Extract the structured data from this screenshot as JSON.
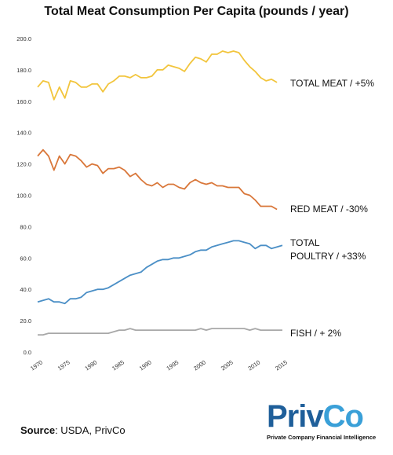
{
  "chart_data": {
    "type": "line",
    "title": "Total Meat Consumption Per Capita (pounds / year)",
    "xlabel": "",
    "ylabel": "",
    "xlim": [
      1970,
      2015
    ],
    "ylim": [
      0,
      200
    ],
    "yticks": [
      "0.0",
      "20.0",
      "40.0",
      "60.0",
      "80.0",
      "100.0",
      "120.0",
      "140.0",
      "160.0",
      "180.0",
      "200.0"
    ],
    "xticks": [
      "1970",
      "1975",
      "1980",
      "1985",
      "1990",
      "1995",
      "2000",
      "2005",
      "2010",
      "2015"
    ],
    "grid": false,
    "x": [
      1970,
      1971,
      1972,
      1973,
      1974,
      1975,
      1976,
      1977,
      1978,
      1979,
      1980,
      1981,
      1982,
      1983,
      1984,
      1985,
      1986,
      1987,
      1988,
      1989,
      1990,
      1991,
      1992,
      1993,
      1994,
      1995,
      1996,
      1997,
      1998,
      1999,
      2000,
      2001,
      2002,
      2003,
      2004,
      2005,
      2006,
      2007,
      2008,
      2009,
      2010,
      2011,
      2012,
      2013,
      2014,
      2015
    ],
    "series": [
      {
        "name": "TOTAL MEAT / +5%",
        "color": "#f2c53d",
        "values": [
          169,
          173,
          172,
          161,
          169,
          162,
          173,
          172,
          169,
          169,
          171,
          171,
          166,
          171,
          173,
          176,
          176,
          175,
          177,
          175,
          175,
          176,
          180,
          180,
          183,
          182,
          181,
          179,
          184,
          188,
          187,
          185,
          190,
          190,
          192,
          191,
          192,
          191,
          186,
          182,
          179,
          175,
          173,
          174,
          172,
          null
        ]
      },
      {
        "name": "RED MEAT / -30%",
        "color": "#d9773a",
        "values": [
          125,
          129,
          125,
          116,
          125,
          120,
          126,
          125,
          122,
          118,
          120,
          119,
          114,
          117,
          117,
          118,
          116,
          112,
          114,
          110,
          107,
          106,
          108,
          105,
          107,
          107,
          105,
          104,
          108,
          110,
          108,
          107,
          108,
          106,
          106,
          105,
          105,
          105,
          101,
          100,
          97,
          93,
          93,
          93,
          91,
          null
        ]
      },
      {
        "name": "TOTAL POULTRY / +33%",
        "color": "#4b8fc6",
        "values": [
          32,
          33,
          34,
          32,
          32,
          31,
          34,
          34,
          35,
          38,
          39,
          40,
          40,
          41,
          43,
          45,
          47,
          49,
          50,
          51,
          54,
          56,
          58,
          59,
          59,
          60,
          60,
          61,
          62,
          64,
          65,
          65,
          67,
          68,
          69,
          70,
          71,
          71,
          70,
          69,
          66,
          68,
          68,
          66,
          67,
          68
        ]
      },
      {
        "name": "FISH / + 2%",
        "color": "#a8a8a8",
        "values": [
          11,
          11,
          12,
          12,
          12,
          12,
          12,
          12,
          12,
          12,
          12,
          12,
          12,
          12,
          13,
          14,
          14,
          15,
          14,
          14,
          14,
          14,
          14,
          14,
          14,
          14,
          14,
          14,
          14,
          14,
          15,
          14,
          15,
          15,
          15,
          15,
          15,
          15,
          15,
          14,
          15,
          14,
          14,
          14,
          14,
          14
        ]
      }
    ]
  },
  "source": {
    "label": "Source",
    "text": ": USDA, PrivCo"
  },
  "logo": {
    "text": "PrivCo",
    "tagline": "Private Company Financial Intelligence",
    "color_dark": "#1f5f9a",
    "color_light": "#3aa0d8"
  }
}
